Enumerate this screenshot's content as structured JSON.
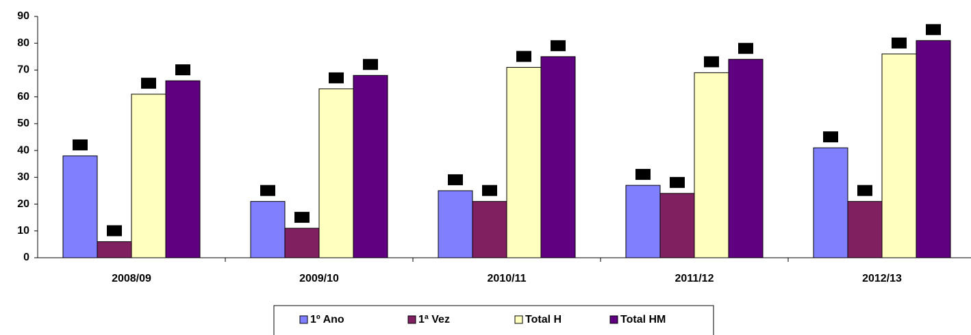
{
  "chart_data": {
    "type": "bar",
    "categories": [
      "2008/09",
      "2009/10",
      "2010/11",
      "2011/12",
      "2012/13"
    ],
    "series": [
      {
        "name": "1º Ano",
        "color": "#8080ff",
        "values": [
          38,
          21,
          25,
          27,
          41
        ]
      },
      {
        "name": "1ª Vez",
        "color": "#802060",
        "values": [
          6,
          11,
          21,
          24,
          21
        ]
      },
      {
        "name": "Total H",
        "color": "#ffffc0",
        "values": [
          61,
          63,
          71,
          69,
          76
        ]
      },
      {
        "name": "Total HM",
        "color": "#600080",
        "values": [
          66,
          68,
          75,
          74,
          81
        ]
      }
    ],
    "ylim": [
      0,
      90
    ],
    "yticks": [
      0,
      10,
      20,
      30,
      40,
      50,
      60,
      70,
      80,
      90
    ],
    "legend": "bottom"
  }
}
